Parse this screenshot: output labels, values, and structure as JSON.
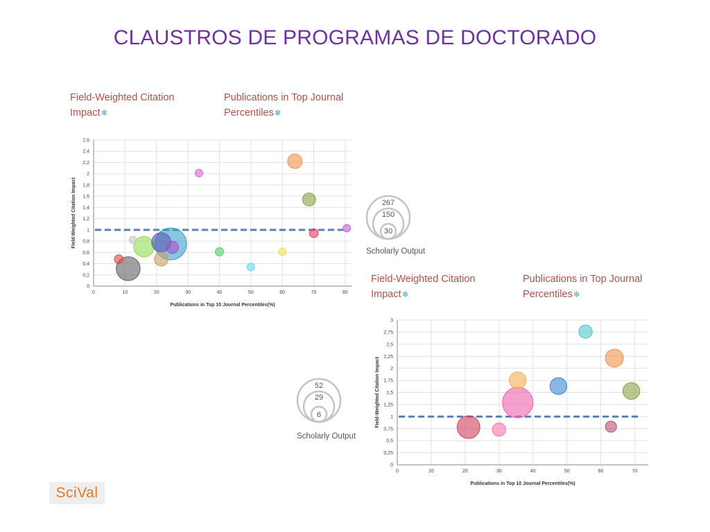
{
  "title": "CLAUSTROS DE PROGRAMAS DE DOCTORADO",
  "logo_text": "SciVal",
  "colors": {
    "title": "#7030a0",
    "metric_label": "#b0504a",
    "reference_line": "#3a6fb0",
    "logo_bg": "#eeeeee",
    "logo_text": "#e87722"
  },
  "chart_data": [
    {
      "type": "scatter",
      "x_metric_label": "Publications in Top Journal Percentiles",
      "y_metric_label": "Field-Weighted Citation Impact",
      "xlabel": "Publications in Top 10 Journal Percentiles(%)",
      "ylabel": "Field-Weighted Citation Impact",
      "xlim": [
        0,
        82
      ],
      "ylim": [
        0,
        2.6
      ],
      "x_ticks": [
        "0",
        "10",
        "20",
        "30",
        "40",
        "50",
        "60",
        "70",
        "80"
      ],
      "y_ticks": [
        "0",
        "0,2",
        "0,4",
        "0,6",
        "0,8",
        "1",
        "1,2",
        "1,4",
        "1,6",
        "1,8",
        "2",
        "2,2",
        "2,4",
        "2,6"
      ],
      "reference_line_y": 1,
      "grid": true,
      "size_legend": {
        "values": [
          "267",
          "150",
          "30"
        ],
        "label": "Scholarly Output"
      },
      "points": [
        {
          "x": 33.5,
          "y": 2.01,
          "size": 15,
          "color": "#d666e0"
        },
        {
          "x": 64,
          "y": 2.22,
          "size": 55,
          "color": "#f0924a"
        },
        {
          "x": 68.5,
          "y": 1.54,
          "size": 45,
          "color": "#8aa24a"
        },
        {
          "x": 80.5,
          "y": 1.03,
          "size": 15,
          "color": "#c060d8"
        },
        {
          "x": 70,
          "y": 0.94,
          "size": 20,
          "color": "#e04060"
        },
        {
          "x": 12.5,
          "y": 0.82,
          "size": 15,
          "color": "#c8c8c8"
        },
        {
          "x": 16,
          "y": 0.7,
          "size": 110,
          "color": "#90e050"
        },
        {
          "x": 21.5,
          "y": 0.78,
          "size": 95,
          "color": "#5a5ab0"
        },
        {
          "x": 24.5,
          "y": 0.75,
          "size": 267,
          "color": "#3a9ec8"
        },
        {
          "x": 25,
          "y": 0.69,
          "size": 40,
          "color": "#a050c8"
        },
        {
          "x": 21.5,
          "y": 0.48,
          "size": 50,
          "color": "#c8a060"
        },
        {
          "x": 8,
          "y": 0.48,
          "size": 20,
          "color": "#e04848"
        },
        {
          "x": 11,
          "y": 0.31,
          "size": 150,
          "color": "#606060"
        },
        {
          "x": 40,
          "y": 0.61,
          "size": 18,
          "color": "#50d070"
        },
        {
          "x": 50,
          "y": 0.34,
          "size": 15,
          "color": "#60d8f0"
        },
        {
          "x": 60,
          "y": 0.61,
          "size": 15,
          "color": "#f0e060"
        }
      ]
    },
    {
      "type": "scatter",
      "x_metric_label": "Publications in Top Journal Percentiles",
      "y_metric_label": "Field-Weighted Citation Impact",
      "xlabel": "Publications in Top 10 Journal Percentiles(%)",
      "ylabel": "Field-Weighted Citation Impact",
      "xlim": [
        0,
        74
      ],
      "ylim": [
        0,
        3
      ],
      "x_ticks": [
        "0",
        "10",
        "20",
        "30",
        "40",
        "50",
        "60",
        "70"
      ],
      "y_ticks": [
        "0",
        "0,25",
        "0,5",
        "0,75",
        "1",
        "1,25",
        "1,5",
        "1,75",
        "2",
        "2,25",
        "2,5",
        "2,75",
        "3"
      ],
      "reference_line_y": 1,
      "grid": true,
      "size_legend": {
        "values": [
          "52",
          "29",
          "6"
        ],
        "label": "Scholarly Output"
      },
      "points": [
        {
          "x": 55.5,
          "y": 2.76,
          "size": 10,
          "color": "#50c8c8"
        },
        {
          "x": 64,
          "y": 2.21,
          "size": 18,
          "color": "#f0924a"
        },
        {
          "x": 35.5,
          "y": 1.75,
          "size": 16,
          "color": "#f0b050"
        },
        {
          "x": 47.5,
          "y": 1.63,
          "size": 16,
          "color": "#3a88d0"
        },
        {
          "x": 69,
          "y": 1.53,
          "size": 16,
          "color": "#8aa24a"
        },
        {
          "x": 35.5,
          "y": 1.29,
          "size": 52,
          "color": "#f060b0"
        },
        {
          "x": 21,
          "y": 0.78,
          "size": 29,
          "color": "#d04060"
        },
        {
          "x": 30,
          "y": 0.73,
          "size": 10,
          "color": "#f878b0"
        },
        {
          "x": 63,
          "y": 0.79,
          "size": 7,
          "color": "#b85070"
        }
      ]
    }
  ]
}
